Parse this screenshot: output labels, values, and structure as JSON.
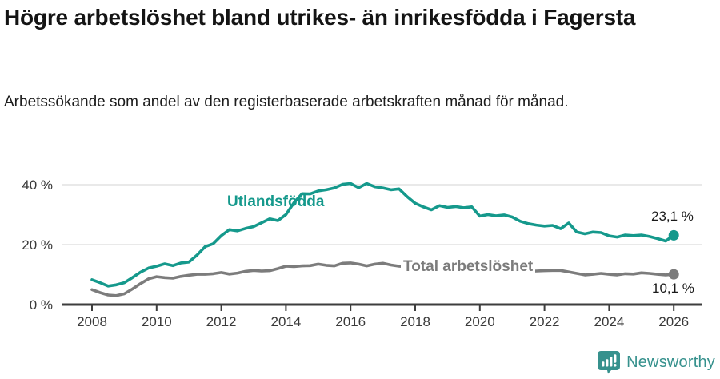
{
  "header": {
    "title": "Högre arbetslöshet bland utrikes- än inrikesfödda i Fagersta",
    "subtitle": "Arbetssökande som andel av den registerbaserade arbetskraften månad för månad."
  },
  "chart_data": {
    "type": "line",
    "title": "Högre arbetslöshet bland utrikes- än inrikesfödda i Fagersta",
    "subtitle": "Arbetssökande som andel av den registerbaserade arbetskraften månad för månad.",
    "x_start": 2008.0,
    "x_step": 0.25,
    "x_end": 2026.0,
    "xlim": [
      2007.8,
      2026.4
    ],
    "ylim": [
      0,
      42
    ],
    "grid": "horizontal",
    "x_ticks": [
      "2008",
      "2010",
      "2012",
      "2014",
      "2016",
      "2018",
      "2020",
      "2022",
      "2024",
      "2026"
    ],
    "x_tick_values": [
      2008,
      2010,
      2012,
      2014,
      2016,
      2018,
      2020,
      2022,
      2024,
      2026
    ],
    "y_ticks": [
      {
        "value": 0,
        "label": "0 %"
      },
      {
        "value": 20,
        "label": "20 %"
      },
      {
        "value": 40,
        "label": "40 %"
      }
    ],
    "series": [
      {
        "name": "Utlandsfödda",
        "color": "#15998c",
        "end_label": "23,1 %",
        "end_value": 23.1,
        "values": [
          8.3,
          7.3,
          6.2,
          6.6,
          7.3,
          9.0,
          10.8,
          12.2,
          12.8,
          13.6,
          13.0,
          13.9,
          14.2,
          16.5,
          19.3,
          20.3,
          23.0,
          25.0,
          24.6,
          25.4,
          26.0,
          27.3,
          28.6,
          28.0,
          30.0,
          34.0,
          37.0,
          36.9,
          37.9,
          38.3,
          38.9,
          40.1,
          40.4,
          39.0,
          40.4,
          39.3,
          38.9,
          38.3,
          38.6,
          36.0,
          33.8,
          32.6,
          31.6,
          33.0,
          32.4,
          32.7,
          32.3,
          32.6,
          29.5,
          30.0,
          29.6,
          29.9,
          29.2,
          27.8,
          27.0,
          26.5,
          26.2,
          26.4,
          25.3,
          27.2,
          24.2,
          23.6,
          24.2,
          24.0,
          22.9,
          22.5,
          23.2,
          23.0,
          23.2,
          22.7,
          22.0,
          21.2,
          23.1
        ]
      },
      {
        "name": "Total arbetslöshet",
        "color": "#7c7c7c",
        "end_label": "10,1 %",
        "end_value": 10.1,
        "values": [
          5.0,
          4.0,
          3.2,
          3.0,
          3.6,
          5.2,
          7.0,
          8.6,
          9.3,
          9.0,
          8.8,
          9.4,
          9.8,
          10.1,
          10.1,
          10.3,
          10.7,
          10.2,
          10.5,
          11.1,
          11.4,
          11.2,
          11.3,
          12.0,
          12.8,
          12.7,
          12.9,
          13.0,
          13.5,
          13.1,
          12.9,
          13.8,
          13.9,
          13.5,
          12.9,
          13.5,
          13.8,
          13.2,
          12.8,
          12.6,
          12.4,
          12.2,
          12.0,
          11.9,
          11.7,
          11.5,
          11.4,
          11.4,
          11.3,
          11.6,
          11.7,
          11.5,
          11.3,
          11.2,
          11.1,
          11.2,
          11.3,
          11.4,
          11.4,
          10.9,
          10.4,
          9.9,
          10.1,
          10.4,
          10.1,
          9.9,
          10.3,
          10.2,
          10.6,
          10.4,
          10.1,
          9.9,
          10.1
        ]
      }
    ],
    "colors": {
      "grid": "#dcdcdc",
      "axis": "#3d3d3d",
      "tick_label": "#3a3a3a"
    }
  },
  "footer": {
    "brand": "Newsworthy",
    "logo_color": "#36918d"
  }
}
